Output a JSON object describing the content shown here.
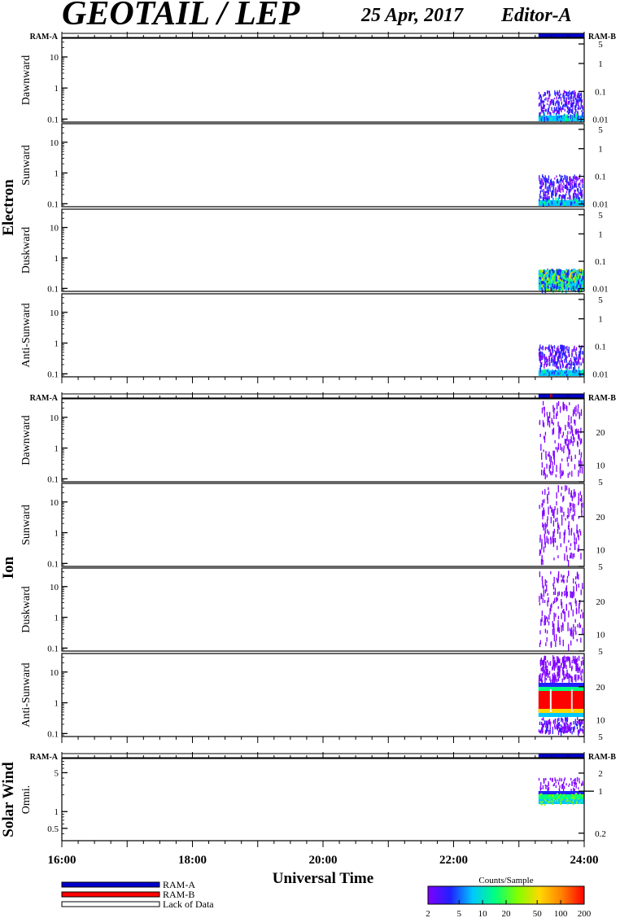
{
  "header": {
    "title": "GEOTAIL / LEP",
    "date": "25 Apr, 2017",
    "editor": "Editor-A"
  },
  "colors": {
    "ram_a": "#0000cc",
    "ram_b": "#ff0000",
    "background": "#ffffff",
    "axis": "#000000"
  },
  "chart_data": {
    "type": "heatmap",
    "xlabel": "Universal Time",
    "x_ticks": [
      "16:00",
      "18:00",
      "20:00",
      "22:00",
      "24:00"
    ],
    "xlim_hours": [
      16,
      24
    ],
    "data_start_hour": 23.3,
    "groups": [
      {
        "name": "Electron",
        "ram_a_label": "RAM-A",
        "ram_b_label": "RAM-B",
        "ram_bar": {
          "start_hour": 23.3,
          "end_hour": 24.0,
          "mode": "RAM-A"
        },
        "panels": [
          {
            "name": "Dawnward",
            "left_ticks": [
              "10",
              "1",
              "0.1"
            ],
            "right_ticks": [
              "5",
              "1",
              "0.1",
              "0.01"
            ],
            "pattern": "sparse-top-dense-bottom"
          },
          {
            "name": "Sunward",
            "left_ticks": [
              "10",
              "1",
              "0.1"
            ],
            "right_ticks": [
              "5",
              "1",
              "0.1",
              "0.01"
            ],
            "pattern": "sparse-top-dense-bottom"
          },
          {
            "name": "Duskward",
            "left_ticks": [
              "10",
              "1",
              "0.1"
            ],
            "right_ticks": [
              "5",
              "1",
              "0.1",
              "0.01"
            ],
            "pattern": "dense-band"
          },
          {
            "name": "Anti-Sunward",
            "left_ticks": [
              "10",
              "1",
              "0.1"
            ],
            "right_ticks": [
              "5",
              "1",
              "0.1",
              "0.01"
            ],
            "pattern": "sparse-top-dense-bottom"
          }
        ]
      },
      {
        "name": "Ion",
        "ram_a_label": "RAM-A",
        "ram_b_label": "RAM-B",
        "ram_bar": {
          "start_hour": 23.3,
          "end_hour": 24.0,
          "mode": "RAM-A"
        },
        "panels": [
          {
            "name": "Dawnward",
            "left_ticks": [
              "10",
              "1",
              "0.1"
            ],
            "right_ticks": [
              "20",
              "10",
              "5"
            ],
            "pattern": "speckle"
          },
          {
            "name": "Sunward",
            "left_ticks": [
              "10",
              "1",
              "0.1"
            ],
            "right_ticks": [
              "20",
              "10",
              "5"
            ],
            "pattern": "speckle"
          },
          {
            "name": "Duskward",
            "left_ticks": [
              "10",
              "1",
              "0.1"
            ],
            "right_ticks": [
              "20",
              "10",
              "5"
            ],
            "pattern": "speckle"
          },
          {
            "name": "Anti-Sunward",
            "left_ticks": [
              "10",
              "1",
              "0.1"
            ],
            "right_ticks": [
              "20",
              "10",
              "5"
            ],
            "pattern": "intense-band"
          }
        ]
      },
      {
        "name": "Solar Wind",
        "ram_a_label": "RAM-A",
        "ram_b_label": "RAM-B",
        "ram_bar": {
          "start_hour": 23.3,
          "end_hour": 24.0,
          "mode": "RAM-A"
        },
        "panels": [
          {
            "name": "Omni.",
            "left_ticks": [
              "5",
              "1",
              "0.5"
            ],
            "right_ticks": [
              "2",
              "1",
              "0.2"
            ],
            "pattern": "thin-band"
          }
        ]
      }
    ],
    "legend": [
      {
        "label": "RAM-A",
        "color": "#0000cc"
      },
      {
        "label": "RAM-B",
        "color": "#ff0000"
      },
      {
        "label": "Lack of Data",
        "color": "#ffffff"
      }
    ],
    "colorbar": {
      "title": "Counts/Sample",
      "ticks": [
        "2",
        "5",
        "10",
        "20",
        "50",
        "100",
        "200"
      ],
      "colors": [
        "#7f00ff",
        "#2020ff",
        "#00c8ff",
        "#00ff80",
        "#80ff00",
        "#ffd800",
        "#ff8000",
        "#ff0000"
      ]
    }
  }
}
